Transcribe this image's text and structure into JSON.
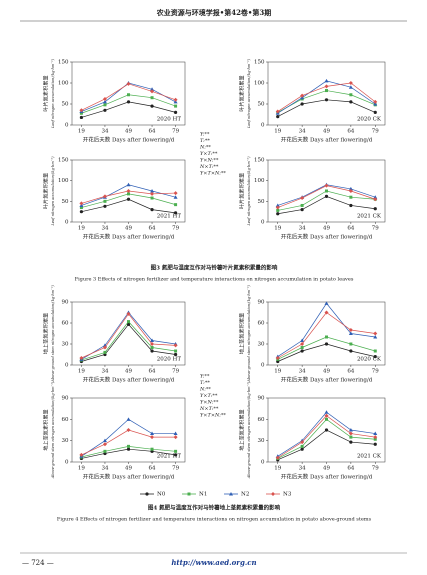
{
  "header": {
    "title": "农业资源与环境学报•第42卷•第3期"
  },
  "chart_data": [
    {
      "type": "line",
      "label": "2020 HT",
      "ylabel": "叶片氮素积累量",
      "ylabel_en": "Leaf nitrogen accumulation/(kg·hm⁻²)",
      "xlabel": "开花后天数 Days after flowering/d",
      "x": [
        19,
        34,
        49,
        64,
        79
      ],
      "xlim": [
        13,
        85
      ],
      "xticks": [
        19,
        34,
        49,
        64,
        79
      ],
      "ylim": [
        0,
        150
      ],
      "yticks": [
        0,
        50,
        100,
        150
      ],
      "series": [
        {
          "name": "N0",
          "color": "#222222",
          "marker": "circle",
          "values": [
            18,
            35,
            55,
            45,
            30
          ]
        },
        {
          "name": "N1",
          "color": "#4caf50",
          "marker": "square",
          "values": [
            28,
            48,
            72,
            65,
            45
          ]
        },
        {
          "name": "N2",
          "color": "#2f5fb5",
          "marker": "triangle",
          "values": [
            32,
            55,
            100,
            85,
            55
          ]
        },
        {
          "name": "N3",
          "color": "#d9534f",
          "marker": "diamond",
          "values": [
            35,
            62,
            98,
            80,
            60
          ]
        }
      ]
    },
    {
      "type": "line",
      "label": "2020 CK",
      "ylabel": "叶片氮素积累量",
      "ylabel_en": "Leaf nitrogen accumulation/(kg·hm⁻²)",
      "xlabel": "开花后天数 Days after flowering/d",
      "x": [
        19,
        34,
        49,
        64,
        79
      ],
      "xlim": [
        13,
        85
      ],
      "xticks": [
        19,
        34,
        49,
        64,
        79
      ],
      "ylim": [
        0,
        150
      ],
      "yticks": [
        0,
        50,
        100,
        150
      ],
      "series": [
        {
          "name": "N0",
          "color": "#222222",
          "marker": "circle",
          "values": [
            20,
            50,
            60,
            55,
            30
          ]
        },
        {
          "name": "N1",
          "color": "#4caf50",
          "marker": "square",
          "values": [
            30,
            62,
            82,
            72,
            48
          ]
        },
        {
          "name": "N2",
          "color": "#2f5fb5",
          "marker": "triangle",
          "values": [
            28,
            65,
            105,
            90,
            50
          ]
        },
        {
          "name": "N3",
          "color": "#d9534f",
          "marker": "diamond",
          "values": [
            32,
            70,
            92,
            100,
            55
          ]
        }
      ]
    },
    {
      "type": "line",
      "label": "2021 HT",
      "ylabel": "叶片氮素积累量",
      "ylabel_en": "Leaf nitrogen accumulation/(kg·hm⁻²)",
      "xlabel": "开花后天数 Days after flowering/d",
      "x": [
        19,
        34,
        49,
        64,
        79
      ],
      "xlim": [
        13,
        85
      ],
      "xticks": [
        19,
        34,
        49,
        64,
        79
      ],
      "ylim": [
        0,
        150
      ],
      "yticks": [
        0,
        50,
        100,
        150
      ],
      "series": [
        {
          "name": "N0",
          "color": "#222222",
          "marker": "circle",
          "values": [
            25,
            38,
            55,
            30,
            22
          ]
        },
        {
          "name": "N1",
          "color": "#4caf50",
          "marker": "square",
          "values": [
            35,
            50,
            68,
            58,
            42
          ]
        },
        {
          "name": "N2",
          "color": "#2f5fb5",
          "marker": "triangle",
          "values": [
            40,
            60,
            90,
            75,
            60
          ]
        },
        {
          "name": "N3",
          "color": "#d9534f",
          "marker": "diamond",
          "values": [
            45,
            62,
            75,
            68,
            70
          ]
        }
      ]
    },
    {
      "type": "line",
      "label": "2021 CK",
      "ylabel": "叶片氮素积累量",
      "ylabel_en": "Leaf nitrogen accumulation/(kg·hm⁻²)",
      "xlabel": "开花后天数 Days after flowering/d",
      "x": [
        19,
        34,
        49,
        64,
        79
      ],
      "xlim": [
        13,
        85
      ],
      "xticks": [
        19,
        34,
        49,
        64,
        79
      ],
      "ylim": [
        0,
        150
      ],
      "yticks": [
        0,
        50,
        100,
        150
      ],
      "series": [
        {
          "name": "N0",
          "color": "#222222",
          "marker": "circle",
          "values": [
            20,
            30,
            62,
            40,
            32
          ]
        },
        {
          "name": "N1",
          "color": "#4caf50",
          "marker": "square",
          "values": [
            28,
            40,
            75,
            60,
            55
          ]
        },
        {
          "name": "N2",
          "color": "#2f5fb5",
          "marker": "triangle",
          "values": [
            40,
            60,
            90,
            80,
            60
          ]
        },
        {
          "name": "N3",
          "color": "#d9534f",
          "marker": "diamond",
          "values": [
            35,
            58,
            88,
            75,
            55
          ]
        }
      ]
    },
    {
      "type": "line",
      "label": "2020 HT",
      "ylabel": "地上茎氮素积累量",
      "ylabel_en": "Above-ground stem nitrogen accumulation/(kg·hm⁻²)",
      "xlabel": "开花后天数 Days after flowering/d",
      "x": [
        19,
        34,
        49,
        64,
        79
      ],
      "xlim": [
        13,
        85
      ],
      "xticks": [
        19,
        34,
        49,
        64,
        79
      ],
      "ylim": [
        0,
        90
      ],
      "yticks": [
        0,
        30,
        60,
        90
      ],
      "series": [
        {
          "name": "N0",
          "color": "#222222",
          "marker": "circle",
          "values": [
            5,
            15,
            58,
            20,
            15
          ]
        },
        {
          "name": "N1",
          "color": "#4caf50",
          "marker": "square",
          "values": [
            7,
            18,
            62,
            25,
            20
          ]
        },
        {
          "name": "N2",
          "color": "#2f5fb5",
          "marker": "triangle",
          "values": [
            8,
            28,
            75,
            35,
            30
          ]
        },
        {
          "name": "N3",
          "color": "#d9534f",
          "marker": "diamond",
          "values": [
            10,
            25,
            73,
            30,
            28
          ]
        }
      ]
    },
    {
      "type": "line",
      "label": "2020 CK",
      "ylabel": "地上茎氮素积累量",
      "ylabel_en": "Above-ground stem nitrogen accumulation/(kg·hm⁻²)",
      "xlabel": "开花后天数 Days after flowering/d",
      "x": [
        19,
        34,
        49,
        64,
        79
      ],
      "xlim": [
        13,
        85
      ],
      "xticks": [
        19,
        34,
        49,
        64,
        79
      ],
      "ylim": [
        0,
        90
      ],
      "yticks": [
        0,
        30,
        60,
        90
      ],
      "series": [
        {
          "name": "N0",
          "color": "#222222",
          "marker": "circle",
          "values": [
            5,
            20,
            30,
            20,
            12
          ]
        },
        {
          "name": "N1",
          "color": "#4caf50",
          "marker": "square",
          "values": [
            8,
            25,
            40,
            30,
            20
          ]
        },
        {
          "name": "N2",
          "color": "#2f5fb5",
          "marker": "triangle",
          "values": [
            12,
            35,
            88,
            45,
            40
          ]
        },
        {
          "name": "N3",
          "color": "#d9534f",
          "marker": "diamond",
          "values": [
            10,
            30,
            75,
            50,
            45
          ]
        }
      ]
    },
    {
      "type": "line",
      "label": "2021 HT",
      "ylabel": "地上茎氮素积累量",
      "ylabel_en": "Above-ground stem nitrogen accumulation/(kg·hm⁻²)",
      "xlabel": "开花后天数 Days after flowering/d",
      "x": [
        19,
        34,
        49,
        64,
        79
      ],
      "xlim": [
        13,
        85
      ],
      "xticks": [
        19,
        34,
        49,
        64,
        79
      ],
      "ylim": [
        0,
        90
      ],
      "yticks": [
        0,
        30,
        60,
        90
      ],
      "series": [
        {
          "name": "N0",
          "color": "#222222",
          "marker": "circle",
          "values": [
            5,
            12,
            18,
            15,
            10
          ]
        },
        {
          "name": "N1",
          "color": "#4caf50",
          "marker": "square",
          "values": [
            7,
            15,
            22,
            18,
            15
          ]
        },
        {
          "name": "N2",
          "color": "#2f5fb5",
          "marker": "triangle",
          "values": [
            8,
            30,
            60,
            40,
            40
          ]
        },
        {
          "name": "N3",
          "color": "#d9534f",
          "marker": "diamond",
          "values": [
            10,
            25,
            45,
            35,
            35
          ]
        }
      ]
    },
    {
      "type": "line",
      "label": "2021 CK",
      "ylabel": "地上茎氮素积累量",
      "ylabel_en": "Above-ground stem nitrogen accumulation/(kg·hm⁻²)",
      "xlabel": "开花后天数 Days after flowering/d",
      "x": [
        19,
        34,
        49,
        64,
        79
      ],
      "xlim": [
        13,
        85
      ],
      "xticks": [
        19,
        34,
        49,
        64,
        79
      ],
      "ylim": [
        0,
        90
      ],
      "yticks": [
        0,
        30,
        60,
        90
      ],
      "series": [
        {
          "name": "N0",
          "color": "#222222",
          "marker": "circle",
          "values": [
            3,
            18,
            45,
            28,
            25
          ]
        },
        {
          "name": "N1",
          "color": "#4caf50",
          "marker": "square",
          "values": [
            5,
            22,
            60,
            35,
            32
          ]
        },
        {
          "name": "N2",
          "color": "#2f5fb5",
          "marker": "triangle",
          "values": [
            8,
            30,
            70,
            45,
            40
          ]
        },
        {
          "name": "N3",
          "color": "#d9534f",
          "marker": "diamond",
          "values": [
            6,
            28,
            65,
            40,
            35
          ]
        }
      ]
    }
  ],
  "figures": [
    {
      "stats": [
        "Y:**",
        "T:**",
        "N:**",
        "Y×T:**",
        "Y×N:**",
        "N×T:**",
        "Y×T×N:**"
      ],
      "caption_cn": "图3 氮肥与温度互作对马铃薯叶片氮素积累量的影响",
      "caption_en": "Figure 3 Effects of nitrogen fertilizer and temperature interactions on nitrogen accumulation in potato leaves"
    },
    {
      "stats": [
        "Y:**",
        "T:**",
        "N:**",
        "Y×T:**",
        "Y×N:**",
        "N×T:**",
        "Y×T×N:**"
      ],
      "caption_cn": "图4 氮肥与温度互作对马铃薯地上茎氮素积累量的影响",
      "caption_en": "Figure 4 Effects of nitrogen fertilizer and temperature interactions on nitrogen accumulation in potato above-ground stems"
    }
  ],
  "footer": {
    "page": "— 724 —",
    "url": "http://www.aed.org.cn"
  }
}
